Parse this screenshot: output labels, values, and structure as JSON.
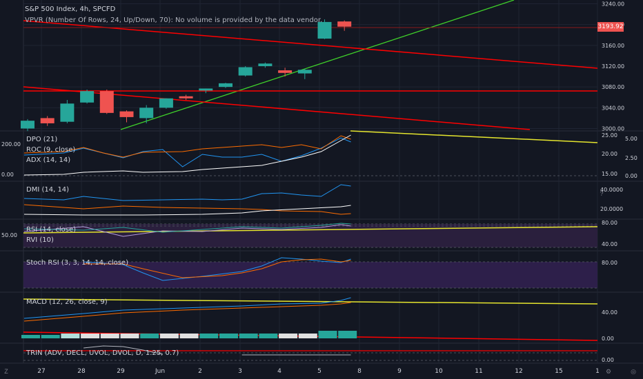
{
  "header": {
    "title": "S&P 500 Index, 4h, SPCFD",
    "vpvr_text": "VPVR (Number Of Rows, 24, Up/Down, 70): No volume is provided by the data vendor."
  },
  "current_price": "3193.92",
  "colors": {
    "background": "#131722",
    "up": "#26a69a",
    "down": "#ef5350",
    "grid": "#1f2433",
    "axis_text": "#d1d4dc",
    "trend_red": "#ff0000",
    "trend_green": "#3fd12a",
    "trend_yellow": "#e6e62e"
  },
  "price_axis": [
    "3240.00",
    "3200.00",
    "3160.00",
    "3120.00",
    "3080.00",
    "3040.00",
    "3000.00"
  ],
  "x_axis": [
    "27",
    "28",
    "29",
    "Jun",
    "2",
    "3",
    "4",
    "5",
    "8",
    "9",
    "10",
    "11",
    "12",
    "15",
    "1"
  ],
  "panes": {
    "dpo": {
      "legend": [
        "DPO (21)",
        "ROC (9, close)",
        "ADX (14, 14)"
      ],
      "right_ticks": [
        "25.00",
        "20.00",
        "15.00"
      ],
      "right_ticks2": [
        "5.00",
        "2.50",
        "0.00"
      ],
      "left_ticks": [
        "200.00",
        "0.00"
      ]
    },
    "dmi": {
      "legend": [
        "DMI (14, 14)"
      ],
      "right_ticks": [
        "40.0000",
        "20.0000"
      ]
    },
    "rsi": {
      "legend": [
        "RSI (14, close)",
        "RVI (10)"
      ],
      "right_ticks": [
        "80.00",
        "40.00"
      ],
      "left_ticks": [
        "50.00"
      ]
    },
    "stoch": {
      "legend": [
        "Stoch RSI (3, 3, 14, 14, close)"
      ],
      "right_ticks": [
        "80.00"
      ]
    },
    "macd": {
      "legend": [
        "MACD (12, 26, close, 9)"
      ],
      "right_ticks": [
        "40.00",
        "0.00"
      ]
    },
    "trin": {
      "legend": [
        "TRIN (ADV, DECL, UVOL, DVOL, D, 1.25, 0.7)"
      ],
      "right_ticks": [
        "0.00"
      ]
    }
  },
  "chart_data": {
    "type": "candlestick",
    "title": "S&P 500 Index, 4h, SPCFD",
    "ylim": [
      2990,
      3250
    ],
    "candles": [
      {
        "o": 3000,
        "h": 3018,
        "l": 2995,
        "c": 3015
      },
      {
        "o": 3020,
        "h": 3024,
        "l": 3005,
        "c": 3010
      },
      {
        "o": 3013,
        "h": 3055,
        "l": 3010,
        "c": 3048
      },
      {
        "o": 3050,
        "h": 3075,
        "l": 3048,
        "c": 3072
      },
      {
        "o": 3072,
        "h": 3075,
        "l": 3028,
        "c": 3030
      },
      {
        "o": 3033,
        "h": 3035,
        "l": 3012,
        "c": 3022
      },
      {
        "o": 3020,
        "h": 3045,
        "l": 3010,
        "c": 3040
      },
      {
        "o": 3040,
        "h": 3058,
        "l": 3038,
        "c": 3058
      },
      {
        "o": 3062,
        "h": 3065,
        "l": 3055,
        "c": 3058
      },
      {
        "o": 3073,
        "h": 3077,
        "l": 3068,
        "c": 3077
      },
      {
        "o": 3080,
        "h": 3088,
        "l": 3078,
        "c": 3087
      },
      {
        "o": 3102,
        "h": 3120,
        "l": 3100,
        "c": 3118
      },
      {
        "o": 3120,
        "h": 3127,
        "l": 3117,
        "c": 3125
      },
      {
        "o": 3112,
        "h": 3117,
        "l": 3100,
        "c": 3107
      },
      {
        "o": 3106,
        "h": 3115,
        "l": 3095,
        "c": 3113
      },
      {
        "o": 3173,
        "h": 3210,
        "l": 3172,
        "c": 3205
      },
      {
        "o": 3206,
        "h": 3208,
        "l": 3188,
        "c": 3196
      }
    ]
  }
}
